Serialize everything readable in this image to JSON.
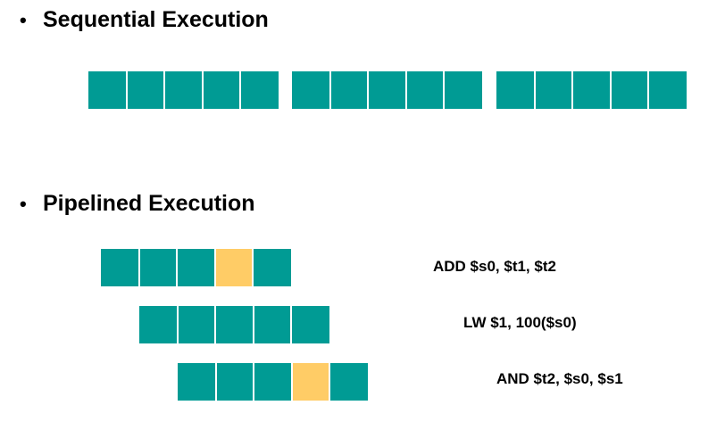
{
  "colors": {
    "stage": "#009b94",
    "stall": "#ffcc66"
  },
  "sequential": {
    "bullet": "•",
    "heading": "Sequential Execution",
    "instructions": [
      {
        "stages": [
          "normal",
          "normal",
          "normal",
          "normal",
          "normal"
        ]
      },
      {
        "stages": [
          "normal",
          "normal",
          "normal",
          "normal",
          "normal"
        ]
      },
      {
        "stages": [
          "normal",
          "normal",
          "normal",
          "normal",
          "normal"
        ]
      }
    ]
  },
  "pipelined": {
    "bullet": "•",
    "heading": "Pipelined Execution",
    "instructions": [
      {
        "label": "ADD $s0, $t1, $t2",
        "stages": [
          "normal",
          "normal",
          "normal",
          "stall",
          "normal"
        ]
      },
      {
        "label": "LW $1, 100($s0)",
        "stages": [
          "normal",
          "normal",
          "normal",
          "normal",
          "normal"
        ]
      },
      {
        "label": "AND $t2, $s0, $s1",
        "stages": [
          "normal",
          "normal",
          "normal",
          "stall",
          "normal"
        ]
      }
    ]
  }
}
